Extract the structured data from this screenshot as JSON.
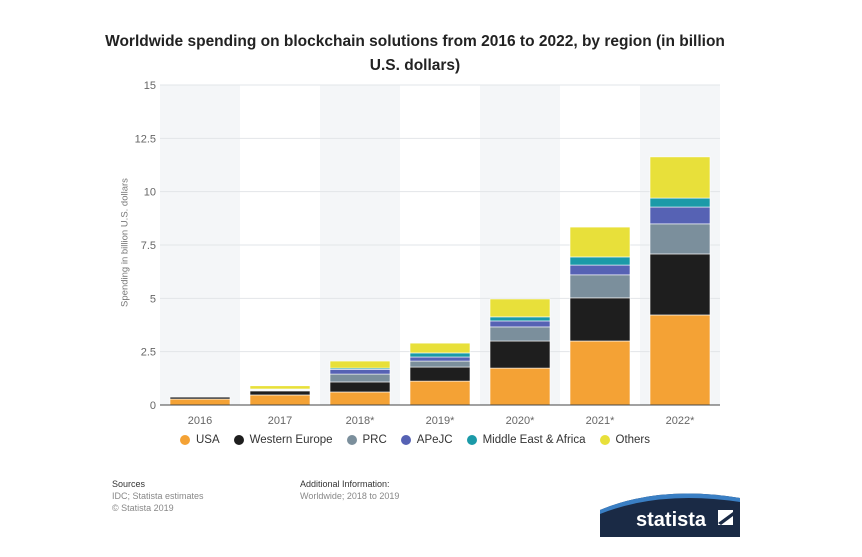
{
  "chart_data": {
    "type": "bar",
    "stacked": true,
    "title": "Worldwide spending on blockchain solutions from 2016 to 2022, by region (in billion U.S. dollars)",
    "xlabel": "",
    "ylabel": "Spending in billion U.S. dollars",
    "ylim": [
      0,
      15
    ],
    "yticks": [
      "0",
      "2.5",
      "5",
      "7.5",
      "10",
      "12.5",
      "15"
    ],
    "grid": true,
    "legend": "bottom",
    "categories": [
      "2016",
      "2017",
      "2018*",
      "2019*",
      "2020*",
      "2021*",
      "2022*"
    ],
    "series": [
      {
        "name": "USA",
        "color": "#f4a235",
        "values": [
          0.28,
          0.47,
          0.61,
          1.12,
          1.73,
          3.0,
          4.22
        ]
      },
      {
        "name": "Western Europe",
        "color": "#1e1e1e",
        "values": [
          0.09,
          0.19,
          0.47,
          0.66,
          1.27,
          2.02,
          2.86
        ]
      },
      {
        "name": "PRC",
        "color": "#7b8f9c",
        "values": [
          0,
          0.03,
          0.37,
          0.28,
          0.66,
          1.08,
          1.41
        ]
      },
      {
        "name": "APeJC",
        "color": "#5662b4",
        "values": [
          0,
          0.03,
          0.22,
          0.19,
          0.28,
          0.46,
          0.79
        ]
      },
      {
        "name": "Middle East & Africa",
        "color": "#1b9aa8",
        "values": [
          0,
          0.03,
          0.06,
          0.19,
          0.19,
          0.38,
          0.42
        ]
      },
      {
        "name": "Others",
        "color": "#e8e03a",
        "values": [
          0,
          0.15,
          0.33,
          0.46,
          0.84,
          1.4,
          1.93
        ]
      }
    ]
  },
  "footer": {
    "sources_title": "Sources",
    "sources_lines": [
      "IDC; Statista estimates",
      "© Statista 2019"
    ],
    "additional_title": "Additional Information:",
    "additional_lines": [
      "Worldwide; 2018 to 2019"
    ],
    "logo_text": "statista"
  }
}
